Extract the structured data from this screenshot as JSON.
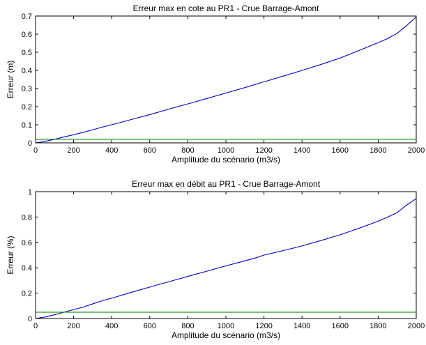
{
  "chart_data": [
    {
      "type": "line",
      "title": "Erreur max en cote au PR1 - Crue Barrage-Amont",
      "xlabel": "Amplitude du scénario (m3/s)",
      "ylabel": "Erreur (m)",
      "xlim": [
        0,
        2000
      ],
      "ylim": [
        0,
        0.7
      ],
      "xticks": [
        0,
        200,
        400,
        600,
        800,
        1000,
        1200,
        1400,
        1600,
        1800,
        2000
      ],
      "yticks": [
        0,
        0.1,
        0.2,
        0.3,
        0.4,
        0.5,
        0.6,
        0.7
      ],
      "xtick_labels": [
        "0",
        "200",
        "400",
        "600",
        "800",
        "1000",
        "1200",
        "1400",
        "1600",
        "1800",
        "2000"
      ],
      "ytick_labels": [
        "0",
        "0.1",
        "0.2",
        "0.3",
        "0.4",
        "0.5",
        "0.6",
        "0.7"
      ],
      "grid": false,
      "series": [
        {
          "color": "#0000cc",
          "x": [
            0,
            50,
            100,
            150,
            200,
            250,
            300,
            350,
            400,
            500,
            600,
            700,
            800,
            900,
            1000,
            1100,
            1200,
            1300,
            1400,
            1500,
            1600,
            1700,
            1800,
            1850,
            1900,
            1950,
            2000
          ],
          "y": [
            0,
            0.008,
            0.02,
            0.033,
            0.045,
            0.058,
            0.072,
            0.087,
            0.1,
            0.128,
            0.156,
            0.186,
            0.215,
            0.245,
            0.275,
            0.305,
            0.337,
            0.368,
            0.4,
            0.433,
            0.468,
            0.51,
            0.553,
            0.576,
            0.605,
            0.648,
            0.695
          ]
        },
        {
          "color": "#008000",
          "x": [
            0,
            2000
          ],
          "y": [
            0.02,
            0.02
          ]
        }
      ]
    },
    {
      "type": "line",
      "title": "Erreur max en débit au PR1 - Crue Barrage-Amont",
      "xlabel": "Amplitude du scénario (m3/s)",
      "ylabel": "Erreur (%)",
      "xlim": [
        0,
        2000
      ],
      "ylim": [
        0,
        1
      ],
      "xticks": [
        0,
        200,
        400,
        600,
        800,
        1000,
        1200,
        1400,
        1600,
        1800,
        2000
      ],
      "yticks": [
        0,
        0.2,
        0.4,
        0.6,
        0.8,
        1
      ],
      "xtick_labels": [
        "0",
        "200",
        "400",
        "600",
        "800",
        "1000",
        "1200",
        "1400",
        "1600",
        "1800",
        "2000"
      ],
      "ytick_labels": [
        "0",
        "0.2",
        "0.4",
        "0.6",
        "0.8",
        "1"
      ],
      "grid": false,
      "series": [
        {
          "color": "#0000cc",
          "x": [
            0,
            50,
            100,
            150,
            200,
            250,
            300,
            350,
            400,
            500,
            600,
            700,
            800,
            900,
            1000,
            1100,
            1150,
            1200,
            1300,
            1400,
            1500,
            1600,
            1700,
            1800,
            1850,
            1900,
            1950,
            2000
          ],
          "y": [
            0,
            0.012,
            0.03,
            0.05,
            0.07,
            0.09,
            0.115,
            0.14,
            0.16,
            0.205,
            0.248,
            0.29,
            0.332,
            0.373,
            0.415,
            0.455,
            0.475,
            0.5,
            0.535,
            0.572,
            0.615,
            0.66,
            0.712,
            0.767,
            0.8,
            0.835,
            0.895,
            0.945
          ]
        },
        {
          "color": "#008000",
          "x": [
            0,
            2000
          ],
          "y": [
            0.05,
            0.05
          ]
        }
      ]
    }
  ]
}
